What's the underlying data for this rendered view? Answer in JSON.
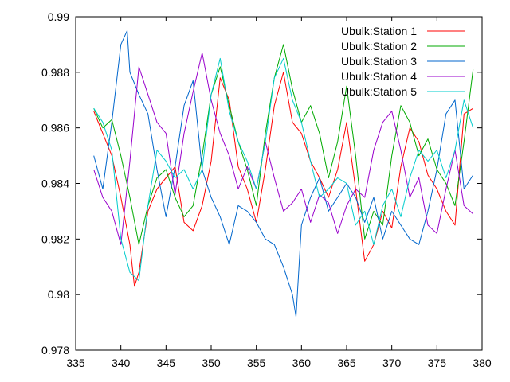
{
  "chart_data": {
    "type": "line",
    "title": "",
    "xlabel": "",
    "ylabel": "",
    "xlim": [
      335,
      380
    ],
    "ylim": [
      0.978,
      0.99
    ],
    "xticks": [
      "335",
      "340",
      "345",
      "350",
      "355",
      "360",
      "365",
      "370",
      "375",
      "380"
    ],
    "yticks": [
      "0.978",
      "0.98",
      "0.982",
      "0.984",
      "0.986",
      "0.988",
      "0.99"
    ],
    "grid": false,
    "legend_position": "top-right",
    "series": [
      {
        "name": "Ubulk:Station 1",
        "color": "#ff0000",
        "x": [
          337,
          338,
          339,
          340,
          341,
          341.5,
          342,
          343,
          344,
          345,
          346,
          347,
          348,
          349,
          350,
          351,
          352,
          353,
          354,
          355,
          356,
          357,
          358,
          359,
          360,
          361,
          362,
          363,
          364,
          365,
          366,
          367,
          368,
          369,
          370,
          371,
          372,
          373,
          374,
          375,
          376,
          377,
          378,
          379
        ],
        "values": [
          0.9866,
          0.9858,
          0.985,
          0.9835,
          0.9818,
          0.9803,
          0.9808,
          0.983,
          0.9838,
          0.9842,
          0.9846,
          0.9826,
          0.9823,
          0.9832,
          0.9848,
          0.9878,
          0.987,
          0.9846,
          0.9838,
          0.9826,
          0.9845,
          0.9868,
          0.988,
          0.9862,
          0.9858,
          0.9848,
          0.9842,
          0.9835,
          0.9845,
          0.9862,
          0.9838,
          0.9812,
          0.9818,
          0.983,
          0.9824,
          0.9846,
          0.986,
          0.9855,
          0.9843,
          0.9838,
          0.983,
          0.9825,
          0.9865,
          0.9867
        ]
      },
      {
        "name": "Ubulk:Station 2",
        "color": "#00aa00",
        "x": [
          337,
          338,
          339,
          340,
          341,
          342,
          343,
          344,
          345,
          346,
          347,
          348,
          349,
          350,
          351,
          352,
          353,
          354,
          355,
          356,
          357,
          358,
          359,
          360,
          361,
          362,
          363,
          364,
          365,
          366,
          367,
          368,
          369,
          370,
          371,
          372,
          373,
          374,
          375,
          376,
          377,
          378,
          379
        ],
        "values": [
          0.9867,
          0.986,
          0.9863,
          0.985,
          0.9835,
          0.9818,
          0.9832,
          0.9842,
          0.9845,
          0.9835,
          0.9828,
          0.9832,
          0.985,
          0.9872,
          0.9882,
          0.9868,
          0.9855,
          0.9845,
          0.9832,
          0.9858,
          0.9878,
          0.989,
          0.9874,
          0.9862,
          0.9868,
          0.9858,
          0.9842,
          0.9855,
          0.9875,
          0.985,
          0.982,
          0.983,
          0.9825,
          0.985,
          0.9868,
          0.9862,
          0.985,
          0.9856,
          0.9845,
          0.984,
          0.9832,
          0.9855,
          0.9881
        ]
      },
      {
        "name": "Ubulk:Station 3",
        "color": "#0066cc",
        "x": [
          337,
          338,
          339,
          340,
          340.7,
          341,
          342,
          343,
          344,
          345,
          346,
          347,
          348,
          349,
          350,
          351,
          352,
          353,
          354,
          355,
          356,
          357,
          358,
          359,
          359.4,
          360,
          361,
          362,
          363,
          364,
          365,
          366,
          367,
          368,
          369,
          370,
          371,
          372,
          373,
          374,
          375,
          376,
          377,
          378,
          379
        ],
        "values": [
          0.985,
          0.9838,
          0.9862,
          0.989,
          0.9895,
          0.988,
          0.9872,
          0.9865,
          0.9845,
          0.9828,
          0.9846,
          0.9868,
          0.9877,
          0.9845,
          0.9835,
          0.9828,
          0.9818,
          0.9832,
          0.983,
          0.9826,
          0.982,
          0.9818,
          0.981,
          0.98,
          0.9792,
          0.9825,
          0.9835,
          0.9842,
          0.983,
          0.9835,
          0.984,
          0.9835,
          0.9826,
          0.9835,
          0.982,
          0.983,
          0.9825,
          0.982,
          0.9818,
          0.983,
          0.9845,
          0.9865,
          0.987,
          0.9838,
          0.9843
        ]
      },
      {
        "name": "Ubulk:Station 4",
        "color": "#9900cc",
        "x": [
          337,
          338,
          339,
          340,
          341,
          342,
          343,
          344,
          345,
          346,
          347,
          348,
          349,
          350,
          351,
          352,
          353,
          354,
          355,
          356,
          357,
          358,
          359,
          360,
          361,
          362,
          363,
          364,
          365,
          366,
          367,
          368,
          369,
          370,
          371,
          372,
          373,
          374,
          375,
          376,
          377,
          378,
          379
        ],
        "values": [
          0.9845,
          0.9835,
          0.983,
          0.9818,
          0.9848,
          0.9882,
          0.9872,
          0.9862,
          0.9858,
          0.9836,
          0.9858,
          0.9873,
          0.9887,
          0.987,
          0.9858,
          0.985,
          0.9838,
          0.9846,
          0.9838,
          0.9855,
          0.9842,
          0.983,
          0.9833,
          0.9838,
          0.9826,
          0.9836,
          0.9833,
          0.9822,
          0.9832,
          0.9838,
          0.9835,
          0.9852,
          0.9862,
          0.9866,
          0.9852,
          0.9835,
          0.9842,
          0.9825,
          0.9822,
          0.9838,
          0.9852,
          0.9832,
          0.9829
        ]
      },
      {
        "name": "Ubulk:Station 5",
        "color": "#00cccc",
        "x": [
          337,
          338,
          339,
          340,
          341,
          342,
          343,
          344,
          345,
          346,
          347,
          348,
          349,
          350,
          351,
          352,
          353,
          354,
          355,
          356,
          357,
          358,
          359,
          360,
          361,
          362,
          363,
          364,
          365,
          366,
          367,
          368,
          369,
          370,
          371,
          372,
          373,
          374,
          375,
          376,
          377,
          378,
          379
        ],
        "values": [
          0.9867,
          0.9862,
          0.9852,
          0.982,
          0.9808,
          0.9805,
          0.9832,
          0.9852,
          0.9848,
          0.9842,
          0.9845,
          0.9838,
          0.9845,
          0.9872,
          0.9885,
          0.9866,
          0.9855,
          0.9848,
          0.9838,
          0.9855,
          0.9878,
          0.9885,
          0.987,
          0.9862,
          0.9848,
          0.9835,
          0.9838,
          0.9842,
          0.984,
          0.9825,
          0.983,
          0.9818,
          0.9832,
          0.9838,
          0.9828,
          0.9842,
          0.9852,
          0.9848,
          0.9852,
          0.9842,
          0.9852,
          0.987,
          0.986
        ]
      }
    ]
  }
}
